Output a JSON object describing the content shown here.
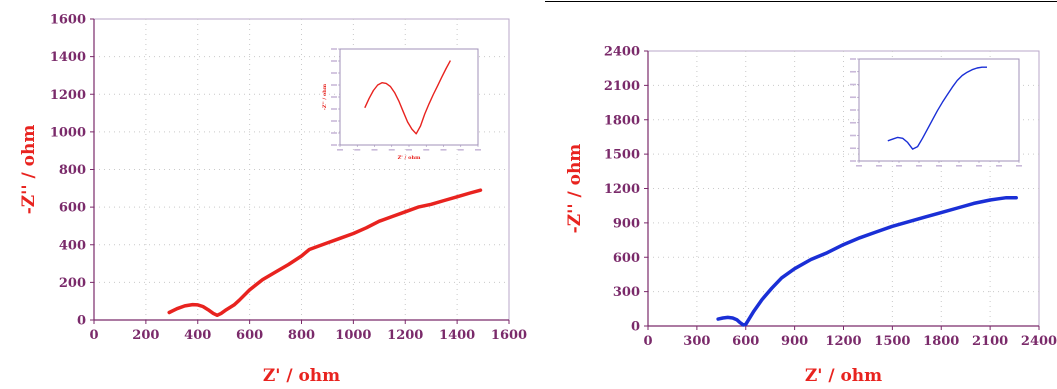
{
  "chart_data": [
    {
      "type": "line",
      "xlabel": "Z' / ohm",
      "ylabel": "-Z'' / ohm",
      "xlim": [
        0,
        1600
      ],
      "ylim": [
        0,
        1600
      ],
      "xticks": [
        0,
        200,
        400,
        600,
        800,
        1000,
        1200,
        1400,
        1600
      ],
      "yticks": [
        0,
        200,
        400,
        600,
        800,
        1000,
        1200,
        1400,
        1600
      ],
      "grid": "dotted",
      "series_color": "#e8231f",
      "axis_label_color": "#e8231f",
      "tick_label_color": "#7a2a6a",
      "series": [
        {
          "x": [
            290,
            320,
            350,
            380,
            400,
            420,
            440,
            460,
            475,
            490,
            510,
            540,
            560,
            600,
            650,
            700,
            750,
            800,
            830,
            860,
            900,
            950,
            1000,
            1050,
            1100,
            1150,
            1200,
            1250,
            1300,
            1350,
            1400,
            1450,
            1490
          ],
          "y": [
            40,
            60,
            75,
            82,
            80,
            72,
            55,
            35,
            25,
            35,
            55,
            80,
            105,
            160,
            215,
            255,
            295,
            340,
            375,
            390,
            410,
            435,
            460,
            490,
            525,
            550,
            575,
            600,
            615,
            635,
            655,
            675,
            690
          ]
        }
      ],
      "inset": {
        "xlabel": "Z' / ohm",
        "ylabel": "-Z'' / ohm",
        "x": [
          0,
          0.05,
          0.1,
          0.15,
          0.2,
          0.25,
          0.3,
          0.35,
          0.4,
          0.45,
          0.5,
          0.55,
          0.6,
          0.65,
          0.7,
          0.75,
          0.8,
          0.85,
          0.9,
          0.95,
          1.0
        ],
        "y": [
          0.35,
          0.47,
          0.57,
          0.64,
          0.67,
          0.66,
          0.62,
          0.54,
          0.43,
          0.3,
          0.17,
          0.08,
          0.02,
          0.12,
          0.27,
          0.4,
          0.52,
          0.63,
          0.74,
          0.85,
          0.95
        ]
      }
    },
    {
      "type": "line",
      "xlabel": "Z' / ohm",
      "ylabel": "-Z'' / ohm",
      "xlim": [
        0,
        2400
      ],
      "ylim": [
        0,
        2400
      ],
      "xticks": [
        0,
        300,
        600,
        900,
        1200,
        1500,
        1800,
        2100,
        2400
      ],
      "yticks": [
        0,
        300,
        600,
        900,
        1200,
        1500,
        1800,
        2100,
        2400
      ],
      "grid": "dotted",
      "series_color": "#1a2fd6",
      "axis_label_color": "#e8231f",
      "tick_label_color": "#7a2a6a",
      "series": [
        {
          "x": [
            430,
            460,
            490,
            520,
            545,
            565,
            585,
            600,
            620,
            650,
            700,
            760,
            820,
            900,
            1000,
            1100,
            1200,
            1300,
            1400,
            1500,
            1600,
            1700,
            1800,
            1900,
            2000,
            2100,
            2150,
            2200,
            2260
          ],
          "y": [
            60,
            70,
            75,
            70,
            55,
            30,
            10,
            15,
            60,
            130,
            230,
            330,
            420,
            500,
            580,
            640,
            710,
            770,
            820,
            870,
            910,
            950,
            990,
            1030,
            1070,
            1100,
            1110,
            1120,
            1120
          ]
        }
      ],
      "inset": {
        "x": [
          0,
          0.05,
          0.1,
          0.15,
          0.2,
          0.25,
          0.3,
          0.35,
          0.4,
          0.45,
          0.5,
          0.55,
          0.6,
          0.65,
          0.7,
          0.75,
          0.8,
          0.85,
          0.9,
          0.95,
          1.0
        ],
        "y": [
          0.12,
          0.14,
          0.16,
          0.15,
          0.1,
          0.02,
          0.05,
          0.15,
          0.26,
          0.37,
          0.48,
          0.58,
          0.67,
          0.76,
          0.84,
          0.9,
          0.94,
          0.97,
          0.99,
          1.0,
          1.0
        ]
      }
    }
  ]
}
